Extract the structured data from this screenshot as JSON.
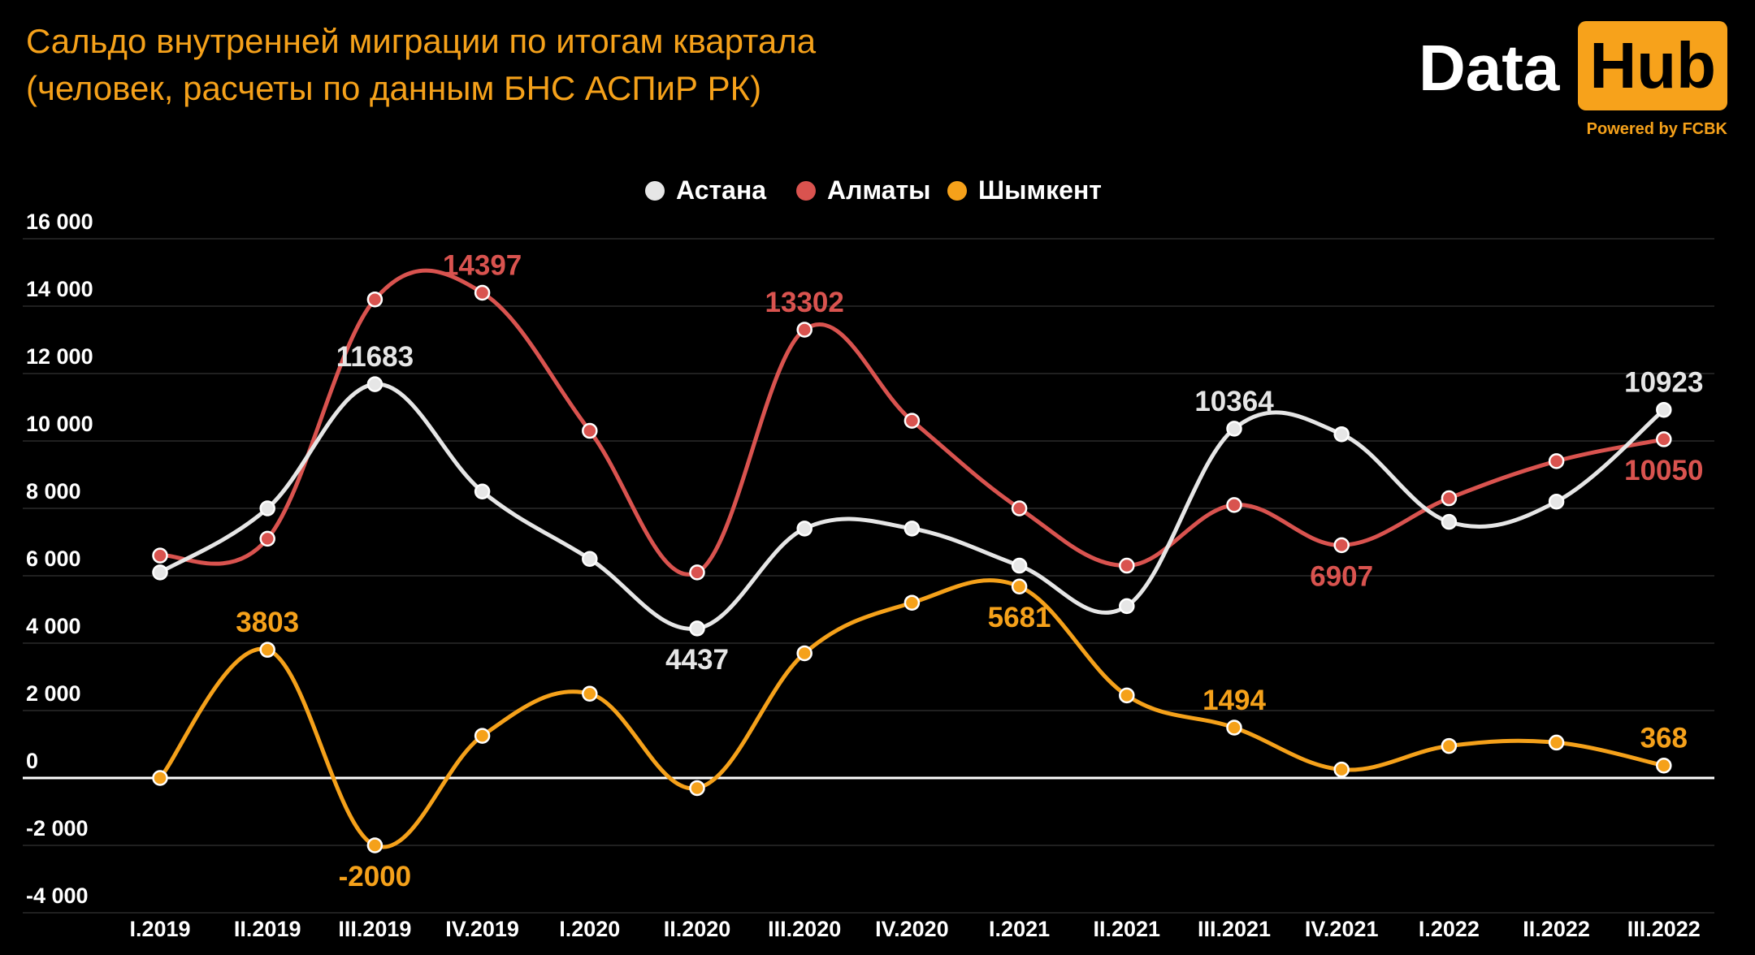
{
  "header": {
    "title_line1": "Сальдо внутренней миграции по итогам квартала",
    "title_line2": "(человек, расчеты по данным БНС АСПиР РК)"
  },
  "logo": {
    "word1": "Data",
    "word2": "Hub",
    "tagline": "Powered by FCBK"
  },
  "chart_data": {
    "type": "line",
    "categories": [
      "I.2019",
      "II.2019",
      "III.2019",
      "IV.2019",
      "I.2020",
      "II.2020",
      "III.2020",
      "IV.2020",
      "I.2021",
      "II.2021",
      "III.2021",
      "IV.2021",
      "I.2022",
      "II.2022",
      "III.2022"
    ],
    "ylim": [
      -4000,
      16000
    ],
    "yticks": [
      16000,
      14000,
      12000,
      10000,
      8000,
      6000,
      4000,
      2000,
      0,
      -2000,
      -4000
    ],
    "ytick_labels": [
      "16 000",
      "14 000",
      "12 000",
      "10 000",
      "8 000",
      "6 000",
      "4 000",
      "2 000",
      "0",
      "-2 000",
      "-4 000"
    ],
    "grid": true,
    "legend_position": "top-center",
    "series": [
      {
        "name": "Астана",
        "color": "#e6e6e6",
        "values": [
          6100,
          8000,
          11683,
          8500,
          6500,
          4437,
          7400,
          7400,
          6300,
          5100,
          10364,
          10200,
          7600,
          8200,
          10923
        ],
        "labels": [
          {
            "index": 2,
            "text": "11683",
            "position": "above"
          },
          {
            "index": 5,
            "text": "4437",
            "position": "below"
          },
          {
            "index": 10,
            "text": "10364",
            "position": "above"
          },
          {
            "index": 14,
            "text": "10923",
            "position": "above"
          }
        ]
      },
      {
        "name": "Алматы",
        "color": "#d9534f",
        "values": [
          6600,
          7100,
          14200,
          14397,
          10300,
          6100,
          13302,
          10600,
          8000,
          6300,
          8100,
          6907,
          8300,
          9400,
          10050
        ],
        "labels": [
          {
            "index": 3,
            "text": "14397",
            "position": "above"
          },
          {
            "index": 6,
            "text": "13302",
            "position": "above"
          },
          {
            "index": 11,
            "text": "6907",
            "position": "below"
          },
          {
            "index": 14,
            "text": "10050",
            "position": "below"
          }
        ]
      },
      {
        "name": "Шымкент",
        "color": "#f5a11a",
        "values": [
          0,
          3803,
          -2000,
          1250,
          2500,
          -300,
          3700,
          5200,
          5681,
          2450,
          1494,
          250,
          950,
          1050,
          368
        ],
        "labels": [
          {
            "index": 1,
            "text": "3803",
            "position": "above"
          },
          {
            "index": 2,
            "text": "-2000",
            "position": "below"
          },
          {
            "index": 8,
            "text": "5681",
            "position": "below"
          },
          {
            "index": 10,
            "text": "1494",
            "position": "above"
          },
          {
            "index": 14,
            "text": "368",
            "position": "above"
          }
        ]
      }
    ]
  }
}
